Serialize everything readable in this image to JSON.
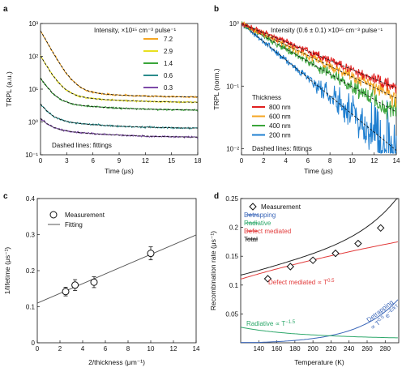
{
  "colors": {
    "red": "#e02020",
    "orange": "#f5a623",
    "green": "#3aa53a",
    "teal": "#2b8c8c",
    "purple": "#7d4aa8",
    "blue": "#1f7fd0",
    "black": "#111111",
    "fit_blue": "#3a66b8",
    "fit_green": "#2ea86b",
    "fit_red": "#e23b3b",
    "fit_total": "#222222"
  },
  "chart_data": [
    {
      "id": "a",
      "type": "line",
      "panel_label": "a",
      "xlabel": "Time (μs)",
      "ylabel": "TRPL (a.u.)",
      "xlim": [
        0,
        18
      ],
      "ylim": [
        0.1,
        1000
      ],
      "yscale": "log",
      "xticks": [
        0,
        3,
        6,
        9,
        12,
        15,
        18
      ],
      "yticks": [
        0.1,
        1,
        10,
        100,
        1000
      ],
      "ytick_labels": [
        "10⁻¹",
        "10⁰",
        "10¹",
        "10²",
        "10³"
      ],
      "legend_title": "Intensity, ×10¹⁵ cm⁻³ pulse⁻¹",
      "legend_position": "top-right",
      "annotation": "Dashed lines: fittings",
      "series": [
        {
          "name": "7.2",
          "color": "#f5a623",
          "y0": 600,
          "tail": 5.5
        },
        {
          "name": "2.9",
          "color": "#e8e020",
          "y0": 100,
          "tail": 3.8
        },
        {
          "name": "1.4",
          "color": "#3aa53a",
          "y0": 20,
          "tail": 2.2
        },
        {
          "name": "0.6",
          "color": "#2b8c8c",
          "y0": 3.0,
          "tail": 0.62
        },
        {
          "name": "0.3",
          "color": "#7d4aa8",
          "y0": 1.0,
          "tail": 0.33
        }
      ]
    },
    {
      "id": "b",
      "type": "line",
      "panel_label": "b",
      "xlabel": "Time (μs)",
      "ylabel": "TRPL (norm.)",
      "xlim": [
        0,
        14
      ],
      "ylim": [
        0.008,
        1
      ],
      "yscale": "log",
      "xticks": [
        0,
        2,
        4,
        6,
        8,
        10,
        12,
        14
      ],
      "yticks": [
        1,
        0.1,
        0.01
      ],
      "ytick_labels": [
        "10⁰",
        "10⁻¹",
        "10⁻²"
      ],
      "legend_title_top": "Intensity (0.6 ± 0.1) ×10¹⁵ cm⁻³ pulse⁻¹",
      "legend_title": "Thickness",
      "legend_position": "left",
      "annotation": "Dashed lines: fittings",
      "series": [
        {
          "name": "800 nm",
          "color": "#e02020",
          "tau": 5.9
        },
        {
          "name": "600 nm",
          "color": "#f5a623",
          "tau": 5.1
        },
        {
          "name": "400 nm",
          "color": "#3aa53a",
          "tau": 4.3
        },
        {
          "name": "200 nm",
          "color": "#1f7fd0",
          "tau": 3.0
        }
      ]
    },
    {
      "id": "c",
      "type": "scatter",
      "panel_label": "c",
      "xlabel": "2/thickness (μm⁻¹)",
      "ylabel": "1/lifetime (μs⁻¹)",
      "xlim": [
        0,
        14
      ],
      "ylim": [
        0,
        0.4
      ],
      "xticks": [
        0,
        2,
        4,
        6,
        8,
        10,
        12,
        14
      ],
      "yticks": [
        0,
        0.1,
        0.2,
        0.3,
        0.4
      ],
      "legend_position": "top-left",
      "legend": [
        "Measurement",
        "Fitting"
      ],
      "points": [
        {
          "x": 2.5,
          "y": 0.142,
          "err": 0.012
        },
        {
          "x": 3.33,
          "y": 0.16,
          "err": 0.015
        },
        {
          "x": 5.0,
          "y": 0.168,
          "err": 0.015
        },
        {
          "x": 10.0,
          "y": 0.248,
          "err": 0.018
        }
      ],
      "fit": {
        "intercept": 0.11,
        "slope": 0.0135
      }
    },
    {
      "id": "d",
      "type": "scatter",
      "panel_label": "d",
      "xlabel": "Temperature (K)",
      "ylabel": "Recombination rate (μs⁻¹)",
      "xlim": [
        120,
        295
      ],
      "ylim": [
        0,
        0.25
      ],
      "xticks": [
        140,
        160,
        180,
        200,
        220,
        240,
        260,
        280
      ],
      "yticks": [
        0.05,
        0.1,
        0.15,
        0.2,
        0.25
      ],
      "legend_position": "top-left",
      "legend": [
        "Measurement",
        "Detrapping",
        "Radiative",
        "Defect mediated",
        "Total"
      ],
      "points": [
        {
          "x": 150,
          "y": 0.111
        },
        {
          "x": 175,
          "y": 0.132
        },
        {
          "x": 200,
          "y": 0.143
        },
        {
          "x": 225,
          "y": 0.155
        },
        {
          "x": 250,
          "y": 0.172
        },
        {
          "x": 275,
          "y": 0.199
        }
      ],
      "annotations": {
        "defect": "Defect mediated ∝ T",
        "defect_exp": "0.5",
        "radiative": "Radiative ∝ T",
        "radiative_exp": "−1.5",
        "detrapping1": "Detrapping",
        "detrapping2": "∝ T",
        "detrapping2_exp": "0.5",
        "detrapping2_tail": "e",
        "detrapping2_tail_exp": "−E/kT"
      }
    }
  ]
}
